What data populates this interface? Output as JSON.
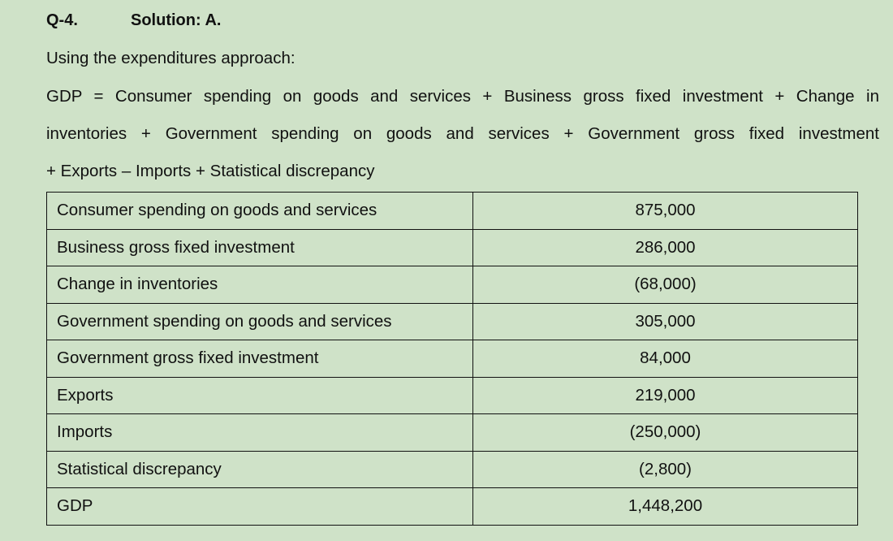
{
  "header": {
    "question": "Q-4.",
    "solution": "Solution: A."
  },
  "intro": {
    "line1": "Using the expenditures approach:",
    "line2": "GDP = Consumer spending on goods and services + Business gross fixed investment + Change in",
    "line3": "inventories + Government spending on goods and services + Government gross fixed investment",
    "line4": "+ Exports – Imports + Statistical discrepancy"
  },
  "table": {
    "rows": [
      {
        "label": "Consumer spending on goods and services",
        "value": "875,000"
      },
      {
        "label": "Business gross fixed investment",
        "value": "286,000"
      },
      {
        "label": "Change in inventories",
        "value": "(68,000)"
      },
      {
        "label": "Government spending on goods and services",
        "value": "305,000"
      },
      {
        "label": "Government gross fixed investment",
        "value": "84,000"
      },
      {
        "label": "Exports",
        "value": "219,000"
      },
      {
        "label": "Imports",
        "value": "(250,000)"
      },
      {
        "label": "Statistical discrepancy",
        "value": "(2,800)"
      },
      {
        "label": "GDP",
        "value": "1,448,200"
      }
    ]
  }
}
